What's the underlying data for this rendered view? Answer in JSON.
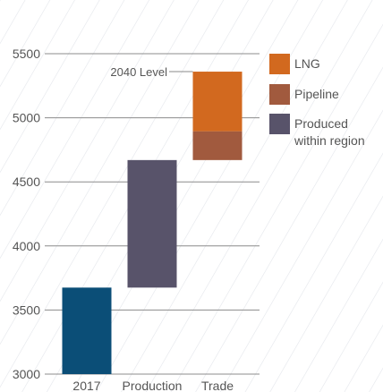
{
  "chart_data": {
    "type": "bar",
    "subtype": "waterfall",
    "categories": [
      "2017",
      "Production",
      "Trade"
    ],
    "ylim": [
      3000,
      5500
    ],
    "yticks": [
      3000,
      3500,
      4000,
      4500,
      5000,
      5500
    ],
    "grid": true,
    "legend_position": "right",
    "series": [
      {
        "name": "Produced within region",
        "color": "#58536a",
        "segments": [
          {
            "category": "Production",
            "base": 3675,
            "value": 995
          }
        ]
      },
      {
        "name": "Pipeline",
        "color": "#a15a3e",
        "segments": [
          {
            "category": "Trade",
            "base": 4670,
            "value": 225
          }
        ]
      },
      {
        "name": "LNG",
        "color": "#d2691f",
        "segments": [
          {
            "category": "Trade",
            "base": 4895,
            "value": 465
          }
        ]
      }
    ],
    "baseline_bar": {
      "category": "2017",
      "value": 3675,
      "color": "#0b4e77"
    },
    "legend": [
      {
        "label": "LNG",
        "color": "#d2691f"
      },
      {
        "label": "Pipeline",
        "color": "#a15a3e"
      },
      {
        "label": "Produced within region",
        "color": "#58536a"
      }
    ],
    "annotation": {
      "text": "2040 Level",
      "value": 5360,
      "category": "Trade"
    },
    "colors": {
      "grid": "#8c8c8c",
      "hatch": "#e3e6eb",
      "text": "#555555"
    }
  }
}
